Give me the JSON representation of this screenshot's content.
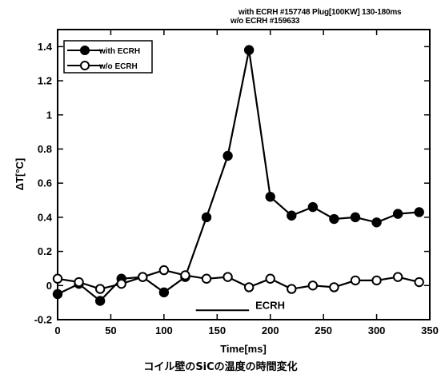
{
  "header": {
    "line1": "with ECRH #157748 Plug[100KW] 130-180ms",
    "line2": "w/o  ECRH #159633"
  },
  "caption": "コイル壁のSiCの温度の時間変化",
  "chart_data": {
    "type": "line",
    "xlabel": "Time[ms]",
    "ylabel": "ΔT[°C]",
    "xlim": [
      0,
      350
    ],
    "ylim": [
      -0.2,
      1.5
    ],
    "xticks": [
      0,
      50,
      100,
      150,
      200,
      250,
      300,
      350
    ],
    "yticks": [
      -0.2,
      0,
      0.2,
      0.4,
      0.6,
      0.8,
      1,
      1.2,
      1.4
    ],
    "ytick_labels": [
      "-0.2",
      "0",
      "0.2",
      "0.4",
      "0.6",
      "0.8",
      "1",
      "1.2",
      "1.4"
    ],
    "grid": false,
    "legend_position": "top-left",
    "series": [
      {
        "name": "with ECRH",
        "marker": "filled-circle",
        "x": [
          0,
          20,
          40,
          60,
          80,
          100,
          120,
          140,
          160,
          180,
          200,
          220,
          240,
          260,
          280,
          300,
          320,
          340
        ],
        "y": [
          -0.05,
          0.01,
          -0.09,
          0.04,
          0.05,
          -0.04,
          0.05,
          0.4,
          0.76,
          1.38,
          0.52,
          0.41,
          0.46,
          0.39,
          0.4,
          0.37,
          0.42,
          0.43
        ]
      },
      {
        "name": "w/o ECRH",
        "marker": "open-circle",
        "x": [
          0,
          20,
          40,
          60,
          80,
          100,
          120,
          140,
          160,
          180,
          200,
          220,
          240,
          260,
          280,
          300,
          320,
          340
        ],
        "y": [
          0.04,
          0.02,
          -0.02,
          0.01,
          0.05,
          0.09,
          0.06,
          0.04,
          0.05,
          -0.01,
          0.04,
          -0.02,
          0.0,
          -0.01,
          0.03,
          0.03,
          0.05,
          0.02
        ]
      }
    ],
    "annotations": [
      {
        "text": "ECRH",
        "x_start": 130,
        "x_end": 180,
        "y": -0.145
      }
    ]
  }
}
